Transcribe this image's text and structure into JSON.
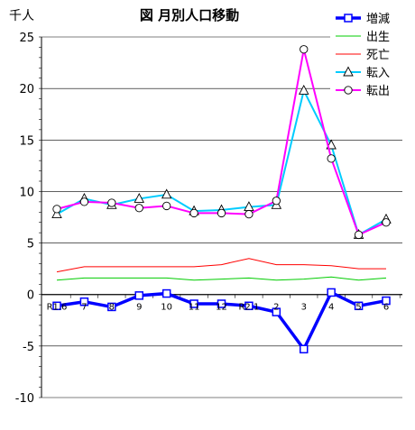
{
  "chart_data": {
    "type": "line",
    "title": "図 月別人口移動",
    "unit_label": "千人",
    "ylim": [
      -10,
      25
    ],
    "yticks": [
      -10,
      -5,
      0,
      5,
      10,
      15,
      20,
      25
    ],
    "grid": true,
    "legend_position": "top-right",
    "categories": [
      "R1.6",
      "7",
      "8",
      "9",
      "10",
      "11",
      "12",
      "R2.1",
      "2",
      "3",
      "4",
      "5",
      "6"
    ],
    "series": [
      {
        "name": "増減",
        "color": "#0000FF",
        "marker": "square",
        "values": [
          -1.1,
          -0.7,
          -1.2,
          -0.1,
          0.1,
          -0.9,
          -0.9,
          -1.1,
          -1.7,
          -5.3,
          0.2,
          -1.1,
          -0.6
        ]
      },
      {
        "name": "出生",
        "color": "#00CC00",
        "marker": "none",
        "values": [
          1.4,
          1.6,
          1.6,
          1.6,
          1.6,
          1.4,
          1.5,
          1.6,
          1.4,
          1.5,
          1.7,
          1.4,
          1.6
        ]
      },
      {
        "name": "死亡",
        "color": "#FF0000",
        "marker": "none",
        "values": [
          2.2,
          2.7,
          2.7,
          2.7,
          2.7,
          2.7,
          2.9,
          3.5,
          2.9,
          2.9,
          2.8,
          2.5,
          2.5
        ]
      },
      {
        "name": "転入",
        "color": "#00CCFF",
        "marker": "triangle",
        "values": [
          7.8,
          9.3,
          8.7,
          9.3,
          9.7,
          8.1,
          8.2,
          8.5,
          8.7,
          19.8,
          14.5,
          5.8,
          7.3
        ]
      },
      {
        "name": "転出",
        "color": "#FF00FF",
        "marker": "circle",
        "values": [
          8.3,
          9.0,
          8.9,
          8.4,
          8.6,
          7.9,
          7.9,
          7.8,
          9.1,
          23.8,
          13.2,
          5.8,
          7.0
        ]
      }
    ]
  }
}
